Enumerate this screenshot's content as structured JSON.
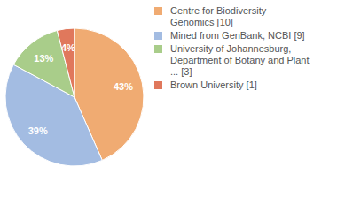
{
  "chart_data": {
    "type": "pie",
    "categories": [
      "Centre for Biodiversity Genomics [10]",
      "Mined from GenBank, NCBI [9]",
      "University of Johannesburg, Department of Botany and Plant ... [3]",
      "Brown University [1]"
    ],
    "values": [
      43,
      39,
      13,
      4
    ],
    "value_labels": [
      "43%",
      "39%",
      "13%",
      "4%"
    ],
    "colors": [
      "#f0ab72",
      "#a3bce2",
      "#a9cd8a",
      "#e0785c"
    ],
    "data_labels": true,
    "legend": "right"
  }
}
